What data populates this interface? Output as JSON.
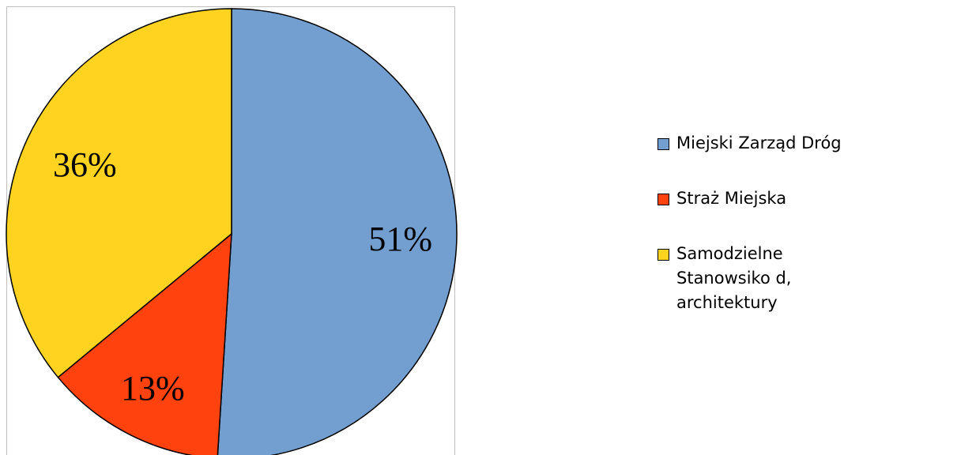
{
  "chart_data": {
    "type": "pie",
    "title": "",
    "slices": [
      {
        "label": "Miejski Zarząd Dróg",
        "value": 51,
        "value_label": "51%",
        "color": "#729fcf"
      },
      {
        "label": "Straż Miejska",
        "value": 13,
        "value_label": "13%",
        "color": "#ff420e"
      },
      {
        "label": "Samodzielne Stanowsiko d, architektury",
        "value": 36,
        "value_label": "36%",
        "color": "#ffd320"
      }
    ],
    "start": "top",
    "direction": "clockwise",
    "legend_position": "right"
  }
}
